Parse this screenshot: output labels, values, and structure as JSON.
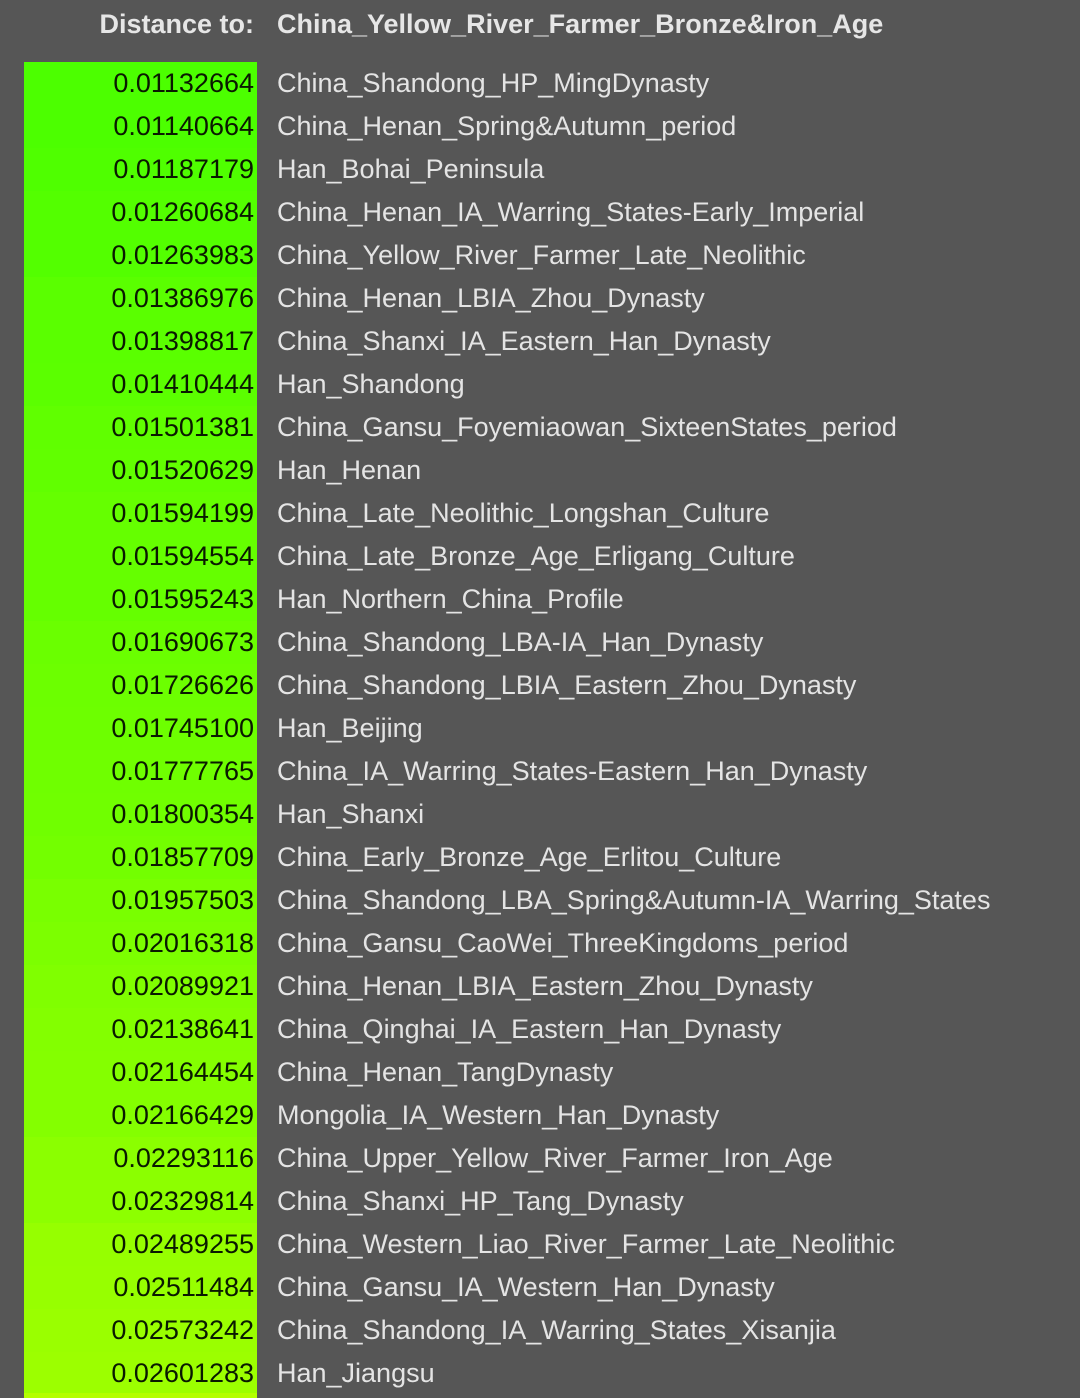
{
  "header": {
    "label": "Distance to:",
    "target": "China_Yellow_River_Farmer_Bronze&Iron_Age"
  },
  "colors": {
    "background": "#565656",
    "low": "#4cff00",
    "high": "#9cff00"
  },
  "rows": [
    {
      "value": "0.01132664",
      "name": "China_Shandong_HP_MingDynasty"
    },
    {
      "value": "0.01140664",
      "name": "China_Henan_Spring&Autumn_period"
    },
    {
      "value": "0.01187179",
      "name": "Han_Bohai_Peninsula"
    },
    {
      "value": "0.01260684",
      "name": "China_Henan_IA_Warring_States-Early_Imperial"
    },
    {
      "value": "0.01263983",
      "name": "China_Yellow_River_Farmer_Late_Neolithic"
    },
    {
      "value": "0.01386976",
      "name": "China_Henan_LBIA_Zhou_Dynasty"
    },
    {
      "value": "0.01398817",
      "name": "China_Shanxi_IA_Eastern_Han_Dynasty"
    },
    {
      "value": "0.01410444",
      "name": "Han_Shandong"
    },
    {
      "value": "0.01501381",
      "name": "China_Gansu_Foyemiaowan_SixteenStates_period"
    },
    {
      "value": "0.01520629",
      "name": "Han_Henan"
    },
    {
      "value": "0.01594199",
      "name": "China_Late_Neolithic_Longshan_Culture"
    },
    {
      "value": "0.01594554",
      "name": "China_Late_Bronze_Age_Erligang_Culture"
    },
    {
      "value": "0.01595243",
      "name": "Han_Northern_China_Profile"
    },
    {
      "value": "0.01690673",
      "name": "China_Shandong_LBA-IA_Han_Dynasty"
    },
    {
      "value": "0.01726626",
      "name": "China_Shandong_LBIA_Eastern_Zhou_Dynasty"
    },
    {
      "value": "0.01745100",
      "name": "Han_Beijing"
    },
    {
      "value": "0.01777765",
      "name": "China_IA_Warring_States-Eastern_Han_Dynasty"
    },
    {
      "value": "0.01800354",
      "name": "Han_Shanxi"
    },
    {
      "value": "0.01857709",
      "name": "China_Early_Bronze_Age_Erlitou_Culture"
    },
    {
      "value": "0.01957503",
      "name": "China_Shandong_LBA_Spring&Autumn-IA_Warring_States"
    },
    {
      "value": "0.02016318",
      "name": "China_Gansu_CaoWei_ThreeKingdoms_period"
    },
    {
      "value": "0.02089921",
      "name": "China_Henan_LBIA_Eastern_Zhou_Dynasty"
    },
    {
      "value": "0.02138641",
      "name": "China_Qinghai_IA_Eastern_Han_Dynasty"
    },
    {
      "value": "0.02164454",
      "name": "China_Henan_TangDynasty"
    },
    {
      "value": "0.02166429",
      "name": "Mongolia_IA_Western_Han_Dynasty"
    },
    {
      "value": "0.02293116",
      "name": "China_Upper_Yellow_River_Farmer_Iron_Age"
    },
    {
      "value": "0.02329814",
      "name": "China_Shanxi_HP_Tang_Dynasty"
    },
    {
      "value": "0.02489255",
      "name": "China_Western_Liao_River_Farmer_Late_Neolithic"
    },
    {
      "value": "0.02511484",
      "name": "China_Gansu_IA_Western_Han_Dynasty"
    },
    {
      "value": "0.02573242",
      "name": "China_Shandong_IA_Warring_States_Xisanjia"
    },
    {
      "value": "0.02601283",
      "name": "Han_Jiangsu"
    }
  ]
}
